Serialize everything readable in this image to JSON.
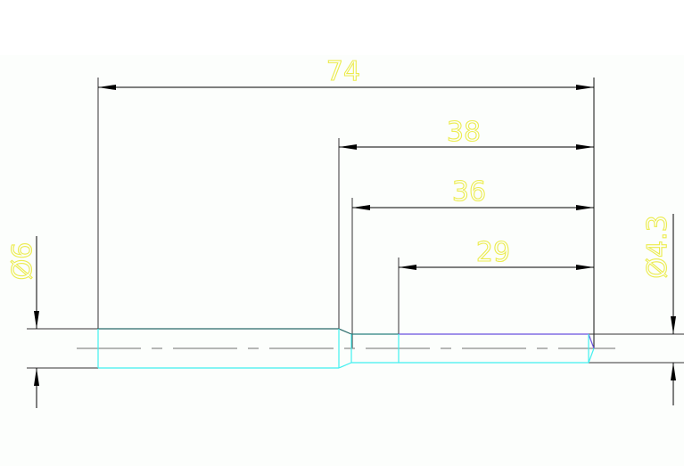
{
  "dimensions": {
    "overall_length": "74",
    "length_38": "38",
    "length_36": "36",
    "length_29": "29",
    "diameter_large": "Ø6",
    "diameter_small": "Ø4.3"
  },
  "colors": {
    "dimension_text": "#ecec50",
    "dimension_lines": "#000000",
    "part_outline_cyan": "#40f0f0",
    "part_outline_teal": "#2a6a6a",
    "part_outline_blue": "#6a50e0",
    "centerline": "#8a8a8a"
  }
}
